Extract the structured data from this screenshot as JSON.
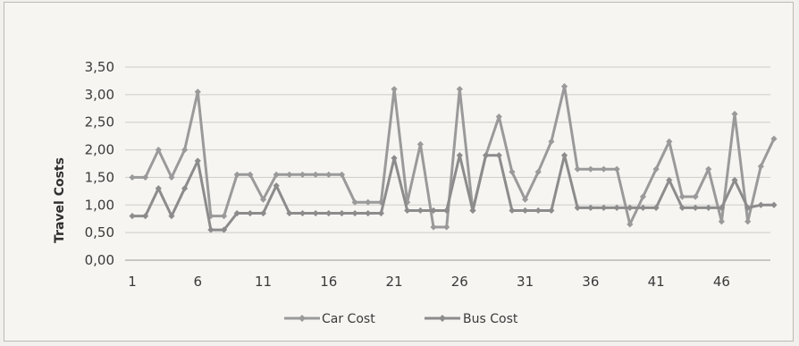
{
  "chart_data": {
    "type": "line",
    "title": "",
    "xlabel": "",
    "ylabel": "Travel Costs",
    "x": [
      1,
      2,
      3,
      4,
      5,
      6,
      7,
      8,
      9,
      10,
      11,
      12,
      13,
      14,
      15,
      16,
      17,
      18,
      19,
      20,
      21,
      22,
      23,
      24,
      25,
      26,
      27,
      28,
      29,
      30,
      31,
      32,
      33,
      34,
      35,
      36,
      37,
      38,
      39,
      40,
      41,
      42,
      43,
      44,
      45,
      46,
      47,
      48,
      49,
      50
    ],
    "x_tick_labels": [
      "1",
      "6",
      "11",
      "16",
      "21",
      "26",
      "31",
      "36",
      "41",
      "46"
    ],
    "y_tick_labels": [
      "0,00",
      "0,50",
      "1,00",
      "1,50",
      "2,00",
      "2,50",
      "3,00",
      "3,50"
    ],
    "ylim": [
      0,
      3.5
    ],
    "grid": true,
    "legend_position": "bottom",
    "series": [
      {
        "name": "Car Cost",
        "color": "#9a9a9a",
        "values": [
          1.5,
          1.5,
          2.0,
          1.5,
          2.0,
          3.05,
          0.8,
          0.8,
          1.55,
          1.55,
          1.1,
          1.55,
          1.55,
          1.55,
          1.55,
          1.55,
          1.55,
          1.05,
          1.05,
          1.05,
          3.1,
          1.05,
          2.1,
          0.6,
          0.6,
          3.1,
          0.9,
          1.9,
          2.6,
          1.6,
          1.1,
          1.6,
          2.15,
          3.15,
          1.65,
          1.65,
          1.65,
          1.65,
          0.65,
          1.15,
          1.65,
          2.15,
          1.15,
          1.15,
          1.65,
          0.7,
          2.65,
          0.7,
          1.7,
          2.2
        ]
      },
      {
        "name": "Bus Cost",
        "color": "#8c8c8c",
        "values": [
          0.8,
          0.8,
          1.3,
          0.8,
          1.3,
          1.8,
          0.55,
          0.55,
          0.85,
          0.85,
          0.85,
          1.35,
          0.85,
          0.85,
          0.85,
          0.85,
          0.85,
          0.85,
          0.85,
          0.85,
          1.85,
          0.9,
          0.9,
          0.9,
          0.9,
          1.9,
          0.9,
          1.9,
          1.9,
          0.9,
          0.9,
          0.9,
          0.9,
          1.9,
          0.95,
          0.95,
          0.95,
          0.95,
          0.95,
          0.95,
          0.95,
          1.45,
          0.95,
          0.95,
          0.95,
          0.95,
          1.45,
          0.95,
          1.0,
          1.0
        ]
      }
    ]
  },
  "legend": {
    "car_label": "Car Cost",
    "bus_label": "Bus Cost"
  }
}
